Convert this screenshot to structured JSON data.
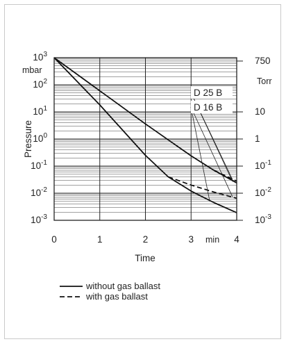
{
  "chart_data": {
    "type": "line",
    "xlabel": "Time",
    "x_unit": "min",
    "ylabel": "Pressure",
    "y_unit": "mbar",
    "y_scale": "log",
    "xlim": [
      0,
      4
    ],
    "ylim": [
      0.001,
      1000
    ],
    "x_ticks": [
      "0",
      "1",
      "2",
      "3",
      "4"
    ],
    "y_ticks": [
      {
        "base": "10",
        "exp": "3",
        "value": 1000
      },
      {
        "base": "10",
        "exp": "2",
        "value": 100
      },
      {
        "base": "10",
        "exp": "1",
        "value": 10
      },
      {
        "base": "10",
        "exp": "0",
        "value": 1
      },
      {
        "base": "10",
        "exp": "-1",
        "value": 0.1
      },
      {
        "base": "10",
        "exp": "-2",
        "value": 0.01
      },
      {
        "base": "10",
        "exp": "-3",
        "value": 0.001
      }
    ],
    "right_axis": {
      "unit": "Torr",
      "ticks": [
        {
          "label": "750",
          "exp": "",
          "value": 750
        },
        {
          "label": "10",
          "exp": "",
          "value": 10
        },
        {
          "label": "1",
          "exp": "",
          "value": 1
        },
        {
          "label": "10",
          "exp": "-1",
          "value": 0.1
        },
        {
          "label": "10",
          "exp": "-2",
          "value": 0.01
        },
        {
          "label": "10",
          "exp": "-3",
          "value": 0.001
        }
      ]
    },
    "grid": true,
    "annotations": [
      {
        "text": "D 25 B",
        "series": [
          0,
          2
        ]
      },
      {
        "text": "D 16 B",
        "series": [
          1,
          3
        ]
      }
    ],
    "series": [
      {
        "style": "solid",
        "points": [
          [
            0,
            1000
          ],
          [
            1,
            60
          ],
          [
            2,
            3.6
          ],
          [
            3,
            0.24
          ],
          [
            3.5,
            0.07
          ],
          [
            4,
            0.024
          ]
        ]
      },
      {
        "style": "solid",
        "points": [
          [
            0,
            1000
          ],
          [
            1,
            18
          ],
          [
            2,
            0.25
          ],
          [
            2.5,
            0.04
          ],
          [
            3,
            0.012
          ],
          [
            3.5,
            0.0045
          ],
          [
            4,
            0.0019
          ]
        ]
      },
      {
        "style": "dashed",
        "points": [
          [
            3.5,
            0.07
          ],
          [
            4,
            0.028
          ]
        ]
      },
      {
        "style": "dashed",
        "points": [
          [
            2.5,
            0.04
          ],
          [
            3,
            0.02
          ],
          [
            3.5,
            0.011
          ],
          [
            4,
            0.0065
          ]
        ]
      }
    ],
    "legend": {
      "placement": "bottom-left",
      "entries": [
        {
          "label": "without gas ballast",
          "style": "solid"
        },
        {
          "label": "with gas ballast",
          "style": "dashed"
        }
      ]
    }
  }
}
